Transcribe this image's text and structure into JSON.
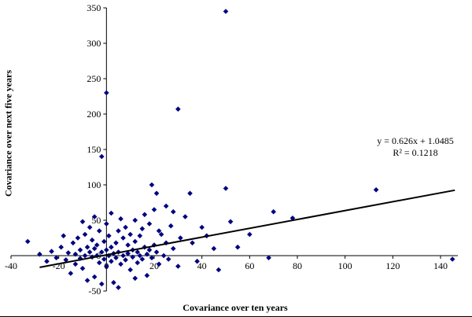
{
  "chart": {
    "y_title": "Covariance over next five years",
    "x_title": "Covariance over ten years",
    "equation_line1": "y = 0.626x + 1.0485",
    "equation_line2": "R² = 0.1218",
    "marker_color": "#000080",
    "trend_color": "#000000",
    "axis_color": "#000000"
  },
  "chart_data": {
    "type": "scatter",
    "title": "",
    "xlabel": "Covariance over ten years",
    "ylabel": "Covariance over next five years",
    "xlim": [
      -40,
      150
    ],
    "ylim": [
      -50,
      350
    ],
    "x_ticks": [
      -40,
      -20,
      0,
      20,
      40,
      60,
      80,
      100,
      120,
      140
    ],
    "y_ticks": [
      -50,
      0,
      50,
      100,
      150,
      200,
      250,
      300,
      350
    ],
    "grid": false,
    "legend": false,
    "trendline": {
      "slope": 0.626,
      "intercept": 1.0485,
      "r_squared": 0.1218,
      "x_start": -28,
      "x_end": 146
    },
    "points": [
      [
        -33,
        20
      ],
      [
        -28,
        2
      ],
      [
        -25,
        -8
      ],
      [
        -23,
        6
      ],
      [
        -21,
        -3
      ],
      [
        -19,
        12
      ],
      [
        -18,
        28
      ],
      [
        -17,
        -6
      ],
      [
        -16,
        4
      ],
      [
        -15,
        -25
      ],
      [
        -14,
        18
      ],
      [
        -13,
        -12
      ],
      [
        -13,
        2
      ],
      [
        -12,
        25
      ],
      [
        -11,
        -4
      ],
      [
        -11,
        8
      ],
      [
        -10,
        -18
      ],
      [
        -10,
        48
      ],
      [
        -9,
        30
      ],
      [
        -9,
        0
      ],
      [
        -8,
        12
      ],
      [
        -8,
        -35
      ],
      [
        -7,
        40
      ],
      [
        -7,
        5
      ],
      [
        -6,
        -2
      ],
      [
        -6,
        22
      ],
      [
        -5,
        -30
      ],
      [
        -5,
        10
      ],
      [
        -5,
        55
      ],
      [
        -4,
        0
      ],
      [
        -4,
        15
      ],
      [
        -3,
        -10
      ],
      [
        -3,
        35
      ],
      [
        -2,
        140
      ],
      [
        -2,
        5
      ],
      [
        -2,
        -40
      ],
      [
        -1,
        20
      ],
      [
        -1,
        -5
      ],
      [
        0,
        230
      ],
      [
        0,
        45
      ],
      [
        0,
        8
      ],
      [
        0,
        -15
      ],
      [
        1,
        0
      ],
      [
        1,
        28
      ],
      [
        2,
        -8
      ],
      [
        2,
        12
      ],
      [
        2,
        60
      ],
      [
        3,
        3
      ],
      [
        3,
        -38
      ],
      [
        4,
        18
      ],
      [
        4,
        -3
      ],
      [
        5,
        35
      ],
      [
        5,
        5
      ],
      [
        5,
        -45
      ],
      [
        6,
        52
      ],
      [
        6,
        -12
      ],
      [
        7,
        25
      ],
      [
        7,
        0
      ],
      [
        8,
        40
      ],
      [
        8,
        -6
      ],
      [
        9,
        15
      ],
      [
        9,
        3
      ],
      [
        10,
        -20
      ],
      [
        10,
        30
      ],
      [
        11,
        8
      ],
      [
        11,
        -2
      ],
      [
        12,
        20
      ],
      [
        12,
        50
      ],
      [
        12,
        -32
      ],
      [
        13,
        -10
      ],
      [
        13,
        5
      ],
      [
        14,
        28
      ],
      [
        14,
        0
      ],
      [
        15,
        -5
      ],
      [
        15,
        38
      ],
      [
        16,
        12
      ],
      [
        16,
        58
      ],
      [
        17,
        2
      ],
      [
        17,
        -28
      ],
      [
        18,
        45
      ],
      [
        18,
        8
      ],
      [
        19,
        100
      ],
      [
        19,
        -3
      ],
      [
        20,
        15
      ],
      [
        20,
        65
      ],
      [
        21,
        88
      ],
      [
        21,
        5
      ],
      [
        22,
        -12
      ],
      [
        22,
        35
      ],
      [
        23,
        30
      ],
      [
        24,
        0
      ],
      [
        25,
        70
      ],
      [
        25,
        18
      ],
      [
        26,
        -5
      ],
      [
        27,
        42
      ],
      [
        28,
        62
      ],
      [
        28,
        10
      ],
      [
        30,
        207
      ],
      [
        30,
        -15
      ],
      [
        31,
        25
      ],
      [
        33,
        55
      ],
      [
        35,
        88
      ],
      [
        36,
        18
      ],
      [
        38,
        -8
      ],
      [
        40,
        40
      ],
      [
        42,
        28
      ],
      [
        45,
        10
      ],
      [
        47,
        -20
      ],
      [
        50,
        345
      ],
      [
        50,
        95
      ],
      [
        52,
        48
      ],
      [
        55,
        12
      ],
      [
        60,
        30
      ],
      [
        68,
        -3
      ],
      [
        70,
        62
      ],
      [
        78,
        53
      ],
      [
        113,
        93
      ],
      [
        145,
        -5
      ]
    ]
  }
}
